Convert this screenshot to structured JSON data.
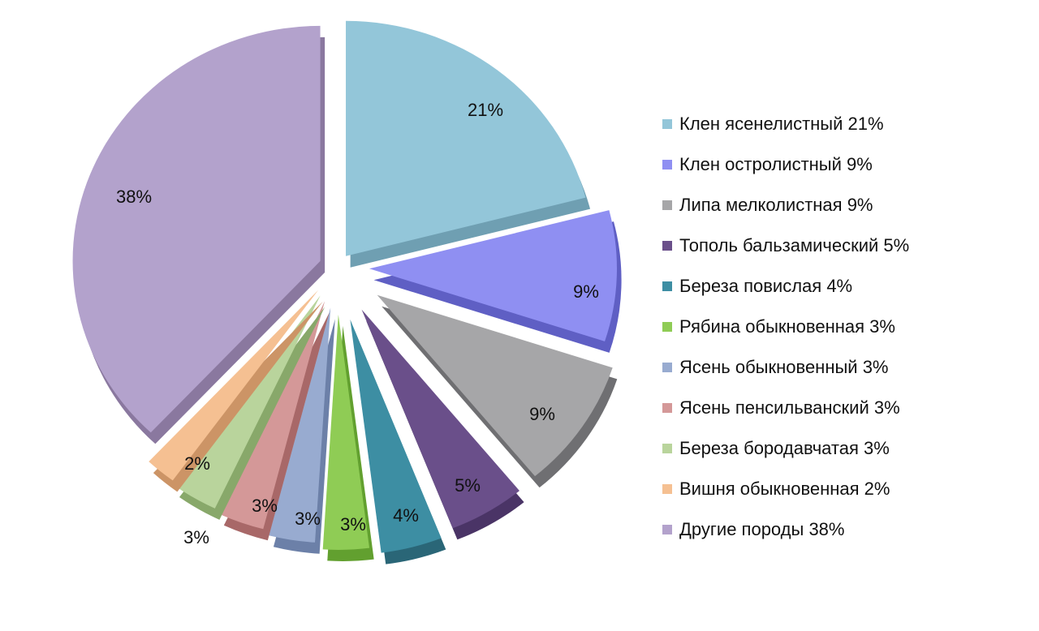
{
  "chart_data": {
    "type": "pie",
    "title": "",
    "legend_position": "right",
    "slices": [
      {
        "label": "Клен ясенелистный 21%",
        "value": 21,
        "data_label": "21%",
        "color": "#93c6d9",
        "side": "#6f9fb2"
      },
      {
        "label": "Клен остролистный 9%",
        "value": 9,
        "data_label": "9%",
        "color": "#8f8ff2",
        "side": "#5f5fc4"
      },
      {
        "label": "Липа мелколистная 9%",
        "value": 9,
        "data_label": "9%",
        "color": "#a6a6a8",
        "side": "#6f6f72"
      },
      {
        "label": "Тополь бальзамический 5%",
        "value": 5,
        "data_label": "5%",
        "color": "#6a4f8a",
        "side": "#4a3466"
      },
      {
        "label": "Береза повислая 4%",
        "value": 4,
        "data_label": "4%",
        "color": "#3d8ea3",
        "side": "#2a6677"
      },
      {
        "label": "Рябина обыкновенная 3%",
        "value": 3,
        "data_label": "3%",
        "color": "#8fcc55",
        "side": "#62a02f"
      },
      {
        "label": "Ясень обыкновенный 3%",
        "value": 3,
        "data_label": "3%",
        "color": "#98abd0",
        "side": "#6c80a8"
      },
      {
        "label": "Ясень пенсильванский 3%",
        "value": 3,
        "data_label": "3%",
        "color": "#d49898",
        "side": "#a86868"
      },
      {
        "label": "Береза бородавчатая 3%",
        "value": 3,
        "data_label": "3%",
        "color": "#b9d49c",
        "side": "#88a86a"
      },
      {
        "label": "Вишня обыкновенная 2%",
        "value": 2,
        "data_label": "2%",
        "color": "#f5c092",
        "side": "#cc9466"
      },
      {
        "label": "Другие породы 38%",
        "value": 38,
        "data_label": "38%",
        "color": "#b3a2cc",
        "side": "#8a789f"
      }
    ]
  }
}
